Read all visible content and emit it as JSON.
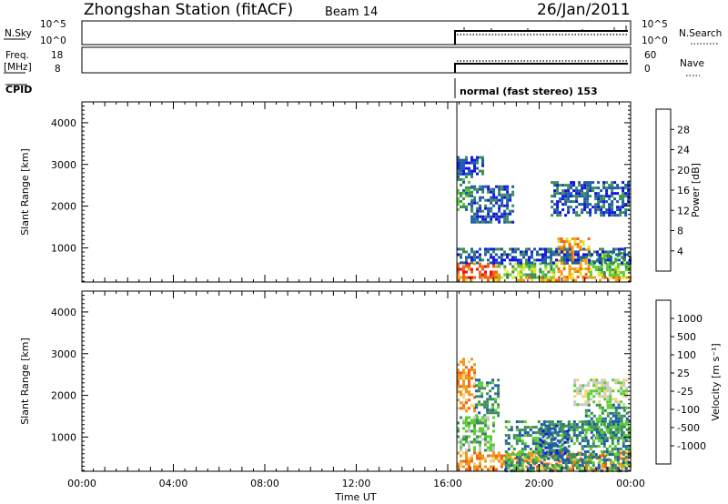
{
  "header": {
    "station": "Zhongshan Station (fitACF)",
    "beam": "Beam 14",
    "date": "26/Jan/2011"
  },
  "aux_panels": {
    "nsky_label": "N.Sky",
    "nsky_ticks": [
      "10^5",
      "10^0"
    ],
    "nsearch_label": "N.Search",
    "nsearch_ticks": [
      "10^5",
      "10^0"
    ],
    "freq_label_1": "Freq.",
    "freq_label_2": "[MHz]",
    "freq_ticks": [
      "18",
      "8"
    ],
    "nave_label": "Nave",
    "nave_ticks": [
      "60",
      "0"
    ],
    "cpid_label": "CPID",
    "cpid_text": "normal (fast stereo) 153"
  },
  "colors": {
    "power_scale": [
      "#1414e0",
      "#1e5aa8",
      "#3c8c5a",
      "#5acd32",
      "#e6e628",
      "#f0a019",
      "#f06414",
      "#e61414"
    ],
    "velocity_scale": [
      "#e61414",
      "#f06414",
      "#f09619",
      "#f0d278",
      "#c8c8c8",
      "#5acd32",
      "#3c8c5a",
      "#1e5aa8",
      "#1414e0"
    ],
    "power_colorbar": [
      "#1e1ee6",
      "#1e5aa8",
      "#3c8c5a",
      "#4ba044",
      "#5acd32",
      "#e6e628",
      "#f0a019",
      "#f07814",
      "#f05014",
      "#e61414"
    ],
    "velocity_colorbar": [
      "#e61414",
      "#f06414",
      "#f09619",
      "#f0d278",
      "#c8c8c8",
      "#5acd32",
      "#3c8c5a",
      "#1e5aa8",
      "#2828c8"
    ]
  },
  "chart_data": [
    {
      "type": "heatmap",
      "panel": "power",
      "xlabel": "Time UT",
      "ylabel": "Slant Range [km]",
      "x_ticks": [
        "00:00",
        "04:00",
        "08:00",
        "12:00",
        "16:00",
        "20:00",
        "00:00"
      ],
      "y_ticks": [
        1000,
        2000,
        3000,
        4000
      ],
      "xlim_hours": [
        0,
        24
      ],
      "ylim_km": [
        180,
        4500
      ],
      "colorbar_label": "Power [dB]",
      "colorbar_ticks": [
        4,
        8,
        12,
        16,
        20,
        24,
        28
      ],
      "data_start_hour": 16.4,
      "regions": [
        {
          "t0": 16.4,
          "t1": 23.95,
          "r0": 200,
          "r1": 320,
          "level": 5
        },
        {
          "t0": 16.4,
          "t1": 18.2,
          "r0": 320,
          "r1": 650,
          "level": 6
        },
        {
          "t0": 18.2,
          "t1": 20.8,
          "r0": 320,
          "r1": 650,
          "level": 3
        },
        {
          "t0": 20.8,
          "t1": 22.2,
          "r0": 320,
          "r1": 1250,
          "level": 5
        },
        {
          "t0": 22.2,
          "t1": 23.95,
          "r0": 320,
          "r1": 900,
          "level": 3
        },
        {
          "t0": 16.4,
          "t1": 23.95,
          "r0": 650,
          "r1": 1000,
          "level": 1
        },
        {
          "t0": 16.4,
          "t1": 17.0,
          "r0": 1900,
          "r1": 2800,
          "level": 2
        },
        {
          "t0": 17.0,
          "t1": 18.8,
          "r0": 1600,
          "r1": 2500,
          "level": 1
        },
        {
          "t0": 20.5,
          "t1": 23.9,
          "r0": 1800,
          "r1": 2600,
          "level": 1
        },
        {
          "t0": 16.4,
          "t1": 17.5,
          "r0": 2800,
          "r1": 3200,
          "level": 1
        }
      ]
    },
    {
      "type": "heatmap",
      "panel": "velocity",
      "xlabel": "Time UT",
      "ylabel": "Slant Range [km]",
      "x_ticks": [
        "00:00",
        "04:00",
        "08:00",
        "12:00",
        "16:00",
        "20:00",
        "00:00"
      ],
      "y_ticks": [
        1000,
        2000,
        3000,
        4000
      ],
      "xlim_hours": [
        0,
        24
      ],
      "ylim_km": [
        180,
        4500
      ],
      "colorbar_label": "Velocity [m s⁻¹]",
      "colorbar_ticks": [
        1000,
        500,
        100,
        25,
        -25,
        -100,
        -500,
        -1000
      ],
      "data_start_hour": 16.4,
      "regions": [
        {
          "t0": 16.4,
          "t1": 17.2,
          "r0": 1600,
          "r1": 2900,
          "level": 2
        },
        {
          "t0": 17.2,
          "t1": 18.2,
          "r0": 1500,
          "r1": 2400,
          "level": 6
        },
        {
          "t0": 16.4,
          "t1": 23.95,
          "r0": 200,
          "r1": 650,
          "level": 2
        },
        {
          "t0": 18.5,
          "t1": 23.95,
          "r0": 200,
          "r1": 1400,
          "level": 6
        },
        {
          "t0": 20.0,
          "t1": 21.2,
          "r0": 500,
          "r1": 1300,
          "level": 7
        },
        {
          "t0": 21.5,
          "t1": 23.8,
          "r0": 1800,
          "r1": 2400,
          "level": 4
        },
        {
          "t0": 22.0,
          "t1": 23.9,
          "r0": 1000,
          "r1": 1800,
          "level": 6
        },
        {
          "t0": 16.4,
          "t1": 18.0,
          "r0": 700,
          "r1": 1500,
          "level": 5
        }
      ]
    }
  ]
}
